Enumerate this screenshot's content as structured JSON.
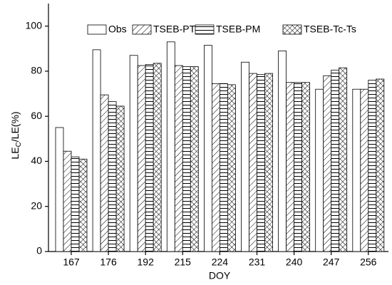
{
  "chart_data": {
    "type": "bar",
    "x_label": "DOY",
    "y_label": [
      "LE",
      "C",
      "/LE(%)"
    ],
    "categories": [
      "167",
      "176",
      "192",
      "215",
      "224",
      "231",
      "240",
      "247",
      "256"
    ],
    "series": [
      {
        "name": "Obs",
        "color": "#000000",
        "pattern": "none",
        "values": [
          55,
          89.5,
          87,
          93,
          91.5,
          84,
          89,
          72,
          72
        ]
      },
      {
        "name": "TSEB-PT",
        "color": "#000000",
        "pattern": "diagonal",
        "values": [
          44.5,
          69.5,
          82.5,
          82.5,
          74.5,
          79,
          75,
          78,
          72
        ]
      },
      {
        "name": "TSEB-PM",
        "color": "#000000",
        "pattern": "horizontal",
        "values": [
          42,
          66.5,
          83,
          82,
          74.5,
          78.5,
          75,
          80.5,
          76
        ]
      },
      {
        "name": "TSEB-Tc-Ts",
        "color": "#000000",
        "pattern": "crosshatch",
        "values": [
          41,
          64.5,
          83.5,
          82,
          74,
          79,
          75,
          81.5,
          76.5
        ]
      }
    ],
    "ylim": [
      0,
      110
    ],
    "yticks": [
      0,
      20,
      40,
      60,
      80,
      100
    ],
    "grid": false,
    "legend": "top"
  }
}
